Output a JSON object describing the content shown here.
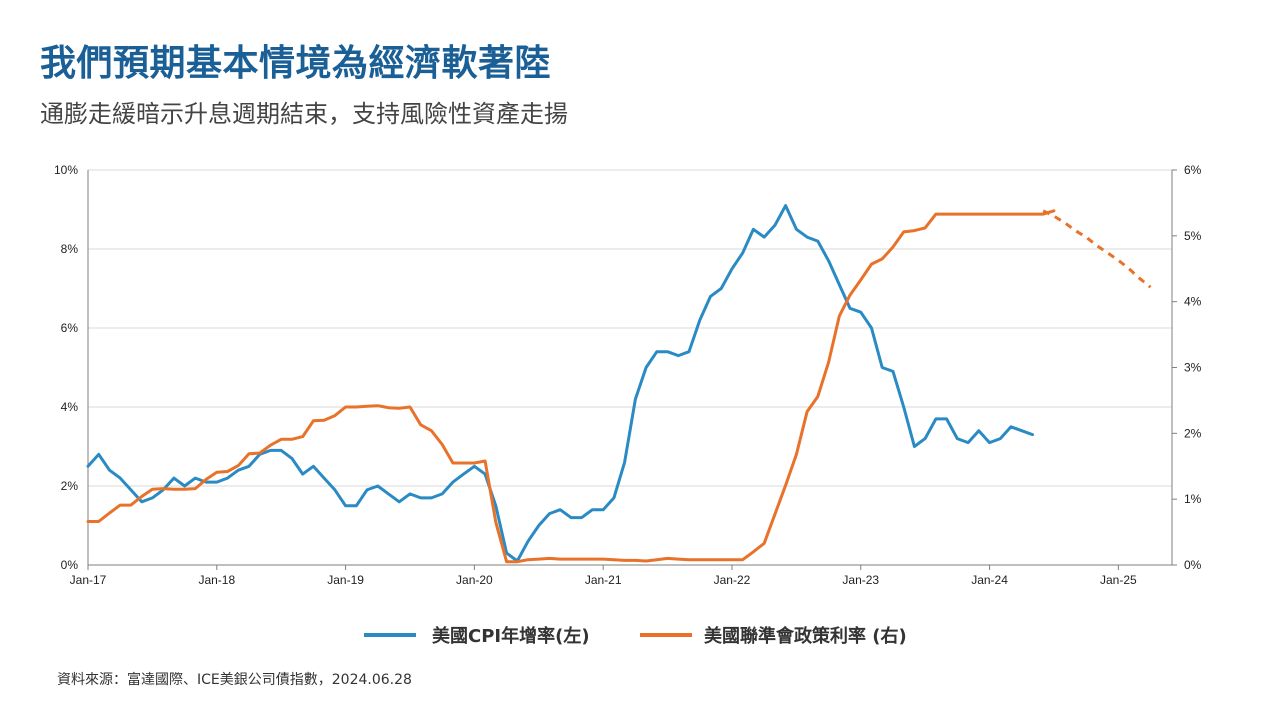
{
  "header": {
    "title": "我們預期基本情境為經濟軟著陸",
    "subtitle": "通膨走緩暗示升息週期結束，支持風險性資產走揚"
  },
  "source": "資料來源：富達國際、ICE美銀公司債指數，2024.06.28",
  "colors": {
    "cpi": "#2a8ac4",
    "fed": "#e8722a",
    "grid": "#d9d9d9",
    "axis": "#7f7f7f"
  },
  "chart_data": {
    "type": "line",
    "x_ticks": [
      "Jan-17",
      "Jan-18",
      "Jan-19",
      "Jan-20",
      "Jan-21",
      "Jan-22",
      "Jan-23",
      "Jan-24",
      "Jan-25"
    ],
    "x_range": [
      "2017-01",
      "2025-06"
    ],
    "y_left": {
      "range": [
        0,
        10
      ],
      "ticks": [
        "0%",
        "2%",
        "4%",
        "6%",
        "8%",
        "10%"
      ]
    },
    "y_right": {
      "range": [
        0,
        6
      ],
      "ticks": [
        "0%",
        "1%",
        "2%",
        "3%",
        "4%",
        "5%",
        "6%"
      ]
    },
    "grid": true,
    "legend_position": "bottom",
    "series": [
      {
        "name": "美國CPI年增率(左)",
        "axis": "left",
        "start": "2017-01",
        "values": [
          2.5,
          2.8,
          2.4,
          2.2,
          1.9,
          1.6,
          1.7,
          1.9,
          2.2,
          2.0,
          2.2,
          2.1,
          2.1,
          2.2,
          2.4,
          2.5,
          2.8,
          2.9,
          2.9,
          2.7,
          2.3,
          2.5,
          2.2,
          1.9,
          1.5,
          1.5,
          1.9,
          2.0,
          1.8,
          1.6,
          1.8,
          1.7,
          1.7,
          1.8,
          2.1,
          2.3,
          2.5,
          2.3,
          1.5,
          0.3,
          0.1,
          0.6,
          1.0,
          1.3,
          1.4,
          1.2,
          1.2,
          1.4,
          1.4,
          1.7,
          2.6,
          4.2,
          5.0,
          5.4,
          5.4,
          5.3,
          5.4,
          6.2,
          6.8,
          7.0,
          7.5,
          7.9,
          8.5,
          8.3,
          8.6,
          9.1,
          8.5,
          8.3,
          8.2,
          7.7,
          7.1,
          6.5,
          6.4,
          6.0,
          5.0,
          4.9,
          4.0,
          3.0,
          3.2,
          3.7,
          3.7,
          3.2,
          3.1,
          3.4,
          3.1,
          3.2,
          3.5,
          3.4,
          3.3
        ]
      },
      {
        "name": "美國聯準會政策利率 (右)",
        "axis": "right",
        "start": "2017-01",
        "values": [
          0.66,
          0.66,
          0.79,
          0.91,
          0.91,
          1.04,
          1.15,
          1.16,
          1.15,
          1.15,
          1.16,
          1.3,
          1.41,
          1.42,
          1.51,
          1.69,
          1.7,
          1.82,
          1.91,
          1.91,
          1.95,
          2.19,
          2.2,
          2.27,
          2.4,
          2.4,
          2.41,
          2.42,
          2.39,
          2.38,
          2.4,
          2.13,
          2.04,
          1.83,
          1.55,
          1.55,
          1.55,
          1.58,
          0.65,
          0.05,
          0.05,
          0.08,
          0.09,
          0.1,
          0.09,
          0.09,
          0.09,
          0.09,
          0.09,
          0.08,
          0.07,
          0.07,
          0.06,
          0.08,
          0.1,
          0.09,
          0.08,
          0.08,
          0.08,
          0.08,
          0.08,
          0.08,
          0.2,
          0.33,
          0.77,
          1.21,
          1.68,
          2.33,
          2.56,
          3.08,
          3.78,
          4.1,
          4.33,
          4.57,
          4.65,
          4.83,
          5.06,
          5.08,
          5.12,
          5.33,
          5.33,
          5.33,
          5.33,
          5.33,
          5.33,
          5.33,
          5.33,
          5.33,
          5.33,
          5.33,
          5.38
        ]
      },
      {
        "name": "",
        "style": "dashed",
        "axis": "right",
        "start": "2024-06",
        "values": [
          5.38,
          5.3,
          5.2,
          5.08,
          4.98,
          4.85,
          4.74,
          4.63,
          4.5,
          4.35,
          4.22
        ]
      }
    ]
  }
}
